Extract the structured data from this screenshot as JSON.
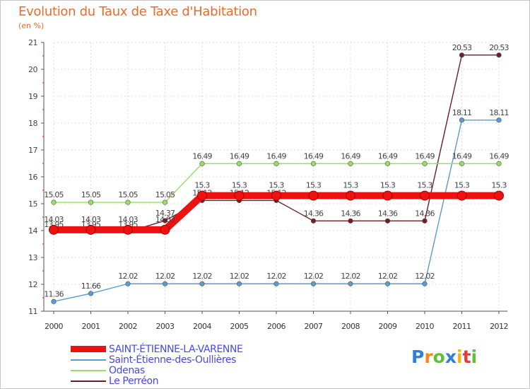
{
  "title": "Evolution du Taux de Taxe d'Habitation",
  "subtitle": "(en %)",
  "chart_data": {
    "type": "line",
    "title": "Evolution du Taux de Taxe d'Habitation",
    "ylabel": "(en %)",
    "xlabel": "",
    "ylim": [
      11,
      21
    ],
    "yticks": [
      "11",
      "12",
      "13",
      "14",
      "15",
      "16",
      "17",
      "18",
      "19",
      "20",
      "21"
    ],
    "categories": [
      "2000",
      "2001",
      "2002",
      "2003",
      "2004",
      "2005",
      "2006",
      "2007",
      "2008",
      "2009",
      "2010",
      "2011",
      "2012"
    ],
    "series": [
      {
        "name": "Le Perréon",
        "color": "#6e1e24",
        "values": [
          13.95,
          13.95,
          13.95,
          14.37,
          15.12,
          15.12,
          15.12,
          14.36,
          14.36,
          14.36,
          14.36,
          20.53,
          20.53
        ],
        "labels": [
          "13.95",
          "13.95",
          "13.95",
          "14.37",
          "15.12",
          "15.12",
          "15.12",
          "14.36",
          "14.36",
          "14.36",
          "14.36",
          "20.53",
          "20.53"
        ]
      },
      {
        "name": "Saint-Étienne-des-Oullières",
        "color": "#5b9ad5",
        "values": [
          11.36,
          11.66,
          12.02,
          12.02,
          12.02,
          12.02,
          12.02,
          12.02,
          12.02,
          12.02,
          12.02,
          18.11,
          18.11
        ],
        "labels": [
          "11.36",
          "11.66",
          "12.02",
          "12.02",
          "12.02",
          "12.02",
          "12.02",
          "12.02",
          "12.02",
          "12.02",
          "12.02",
          "18.11",
          "18.11"
        ]
      },
      {
        "name": "Odenas",
        "color": "#99dd66",
        "values": [
          15.05,
          15.05,
          15.05,
          15.05,
          16.49,
          16.49,
          16.49,
          16.49,
          16.49,
          16.49,
          16.49,
          16.49,
          16.49
        ],
        "labels": [
          "15.05",
          "15.05",
          "15.05",
          "15.05",
          "16.49",
          "16.49",
          "16.49",
          "16.49",
          "16.49",
          "16.49",
          "16.49",
          "16.49",
          "16.49"
        ]
      },
      {
        "name": "SAINT-ÉTIENNE-LA-VARENNE",
        "color": "#ee1111",
        "highlight": true,
        "values": [
          14.03,
          14.03,
          14.03,
          14.03,
          15.3,
          15.3,
          15.3,
          15.3,
          15.3,
          15.3,
          15.3,
          15.3,
          15.3
        ],
        "labels": [
          "14.03",
          "14.03",
          "14.03",
          "14.03",
          "15.3",
          "15.3",
          "15.3",
          "15.3",
          "15.3",
          "15.3",
          "15.3",
          "15.3",
          "15.3"
        ]
      }
    ],
    "legend": [
      "SAINT-ÉTIENNE-LA-VARENNE",
      "Saint-Étienne-des-Oullières",
      "Odenas",
      "Le Perréon"
    ],
    "legend_position": "bottom-left"
  },
  "legend": [
    {
      "label": "SAINT-ÉTIENNE-LA-VARENNE",
      "color": "#ee1111"
    },
    {
      "label": "Saint-Étienne-des-Oullières",
      "color": "#5b9ad5"
    },
    {
      "label": "Odenas",
      "color": "#99dd66"
    },
    {
      "label": "Le Perréon",
      "color": "#6e1e24"
    }
  ],
  "logo": {
    "letters": [
      "P",
      "r",
      "o",
      "x",
      "i",
      "t",
      "i"
    ],
    "colors": [
      "#2f7fd6",
      "#f08a1c",
      "#5fbf3a",
      "#2f7fd6",
      "#f0b21c",
      "#e23b3b",
      "#5fbf3a"
    ]
  }
}
